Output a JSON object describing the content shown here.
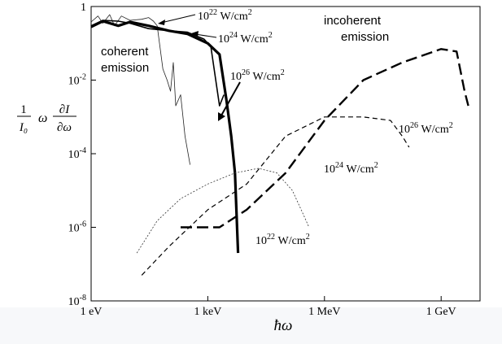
{
  "chart_data": {
    "type": "line",
    "xscale": "log",
    "yscale": "log",
    "xlim": [
      "1 eV",
      "10 GeV"
    ],
    "ylim": [
      1e-08,
      1
    ],
    "x_tick_labels": [
      "1 eV",
      "1 keV",
      "1 MeV",
      "1 GeV"
    ],
    "y_tick_labels": [
      {
        "base": "10",
        "exp": "-8"
      },
      {
        "base": "10",
        "exp": "-6"
      },
      {
        "base": "10",
        "exp": "-4"
      },
      {
        "base": "10",
        "exp": "-2"
      },
      {
        "base": "1",
        "exp": ""
      }
    ],
    "xlabel": "ħω",
    "ylabel": {
      "fraction_num": "1",
      "fraction_den": "I₀",
      "middle": "ω",
      "deriv_num": "∂I",
      "deriv_den": "∂ω"
    },
    "series": [
      {
        "id": "coh-22",
        "group": "coherent",
        "intensity": "10^22 W/cm^2",
        "style": "thin-solid",
        "points_eV_y": [
          [
            1,
            0.38
          ],
          [
            1.5,
            0.55
          ],
          [
            2,
            0.35
          ],
          [
            3,
            0.6
          ],
          [
            4,
            0.3
          ],
          [
            6,
            0.55
          ],
          [
            10,
            0.42
          ],
          [
            20,
            0.45
          ],
          [
            30,
            0.5
          ],
          [
            40,
            0.4
          ],
          [
            50,
            0.3
          ],
          [
            70,
            0.02
          ],
          [
            90,
            0.01
          ],
          [
            110,
            0.005
          ],
          [
            130,
            0.03
          ],
          [
            150,
            0.002
          ],
          [
            200,
            0.004
          ],
          [
            260,
            0.0003
          ],
          [
            350,
            5e-05
          ]
        ]
      },
      {
        "id": "coh-24",
        "group": "coherent",
        "intensity": "10^24 W/cm^2",
        "style": "medium-solid",
        "points_eV_y": [
          [
            1,
            0.3
          ],
          [
            2,
            0.42
          ],
          [
            5,
            0.4
          ],
          [
            10,
            0.35
          ],
          [
            30,
            0.25
          ],
          [
            100,
            0.22
          ],
          [
            300,
            0.2
          ],
          [
            800,
            0.13
          ],
          [
            1200,
            0.08
          ],
          [
            2000,
            0.002
          ],
          [
            2600,
            0.004
          ]
        ]
      },
      {
        "id": "coh-26",
        "group": "coherent",
        "intensity": "10^26 W/cm^2",
        "style": "thick-solid",
        "points_eV_y": [
          [
            1,
            0.28
          ],
          [
            2,
            0.4
          ],
          [
            5,
            0.3
          ],
          [
            10,
            0.38
          ],
          [
            30,
            0.3
          ],
          [
            100,
            0.22
          ],
          [
            300,
            0.18
          ],
          [
            1000,
            0.1
          ],
          [
            2000,
            0.05
          ],
          [
            3000,
            0.003
          ],
          [
            4000,
            0.0003
          ],
          [
            5000,
            3e-05
          ],
          [
            6000,
            2e-07
          ]
        ]
      },
      {
        "id": "inc-22",
        "group": "incoherent",
        "intensity": "10^22 W/cm^2",
        "style": "thin-dotted",
        "points_eV_y": [
          [
            15,
            2e-07
          ],
          [
            50,
            1.5e-06
          ],
          [
            200,
            6e-06
          ],
          [
            1000,
            1.5e-05
          ],
          [
            5000,
            3e-05
          ],
          [
            20000,
            4e-05
          ],
          [
            60000,
            3e-05
          ],
          [
            150000,
            1e-05
          ],
          [
            300000,
            2e-06
          ],
          [
            400000,
            1e-06
          ]
        ]
      },
      {
        "id": "inc-24",
        "group": "incoherent",
        "intensity": "10^24 W/cm^2",
        "style": "dashed",
        "points_eV_y": [
          [
            20,
            5e-08
          ],
          [
            100,
            3e-07
          ],
          [
            1000,
            3e-06
          ],
          [
            10000,
            1.5e-05
          ],
          [
            100000,
            0.0003
          ],
          [
            1000000,
            0.001
          ],
          [
            10000000,
            0.001
          ],
          [
            50000000,
            0.0008
          ],
          [
            100000000,
            0.0003
          ],
          [
            150000000,
            0.00015
          ]
        ]
      },
      {
        "id": "inc-26",
        "group": "incoherent",
        "intensity": "10^26 W/cm^2",
        "style": "long-dashed",
        "points_eV_y": [
          [
            200,
            1e-06
          ],
          [
            2000,
            1e-06
          ],
          [
            10000,
            3e-06
          ],
          [
            100000,
            3e-05
          ],
          [
            1000000,
            0.0008
          ],
          [
            10000000,
            0.01
          ],
          [
            100000000,
            0.03
          ],
          [
            1000000000,
            0.07
          ],
          [
            2500000000,
            0.06
          ],
          [
            4000000000,
            0.005
          ],
          [
            5000000000,
            0.002
          ]
        ]
      }
    ],
    "annotations": {
      "coherent_label": [
        "coherent",
        "emission"
      ],
      "incoherent_label": [
        "incoherent",
        "emission"
      ],
      "intensity_labels": [
        {
          "id": "lbl-coh-22",
          "base": "10",
          "exp": "22",
          "unit": "W/cm",
          "unit_exp": "2"
        },
        {
          "id": "lbl-coh-24",
          "base": "10",
          "exp": "24",
          "unit": "W/cm",
          "unit_exp": "2"
        },
        {
          "id": "lbl-coh-26",
          "base": "10",
          "exp": "26",
          "unit": "W/cm",
          "unit_exp": "2"
        },
        {
          "id": "lbl-inc-26",
          "base": "10",
          "exp": "26",
          "unit": "W/cm",
          "unit_exp": "2"
        },
        {
          "id": "lbl-inc-24",
          "base": "10",
          "exp": "24",
          "unit": "W/cm",
          "unit_exp": "2"
        },
        {
          "id": "lbl-inc-22",
          "base": "10",
          "exp": "22",
          "unit": "W/cm",
          "unit_exp": "2"
        }
      ]
    },
    "grid": false,
    "legend": "none"
  }
}
